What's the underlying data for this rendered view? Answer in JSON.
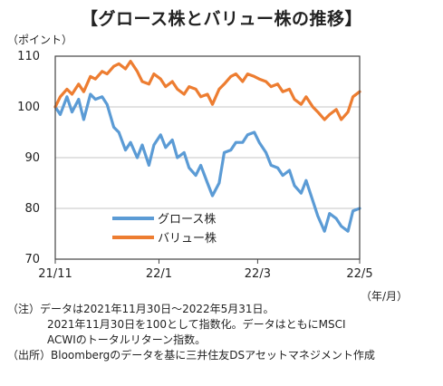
{
  "chart_data": {
    "type": "line",
    "title": "【グロース株とバリュー株の推移】",
    "ylabel": "（ポイント）",
    "xlabel": "（年/月）",
    "ylim": [
      70,
      110
    ],
    "yticks": [
      70,
      80,
      90,
      100,
      110
    ],
    "xticks": [
      "21/11",
      "22/1",
      "22/3",
      "22/5"
    ],
    "legend_position": "lower-left inside",
    "series": [
      {
        "name": "グロース株",
        "color": "#5B9BD5",
        "x": [
          "2021-11-30",
          "2021-12-03",
          "2021-12-07",
          "2021-12-10",
          "2021-12-14",
          "2021-12-17",
          "2021-12-21",
          "2021-12-24",
          "2021-12-28",
          "2021-12-31",
          "2022-01-04",
          "2022-01-07",
          "2022-01-11",
          "2022-01-14",
          "2022-01-18",
          "2022-01-21",
          "2022-01-25",
          "2022-01-28",
          "2022-02-01",
          "2022-02-04",
          "2022-02-08",
          "2022-02-11",
          "2022-02-15",
          "2022-02-18",
          "2022-02-22",
          "2022-02-25",
          "2022-03-01",
          "2022-03-04",
          "2022-03-08",
          "2022-03-11",
          "2022-03-15",
          "2022-03-18",
          "2022-03-22",
          "2022-03-25",
          "2022-03-29",
          "2022-04-01",
          "2022-04-05",
          "2022-04-08",
          "2022-04-12",
          "2022-04-15",
          "2022-04-19",
          "2022-04-22",
          "2022-04-26",
          "2022-04-29",
          "2022-05-03",
          "2022-05-06",
          "2022-05-10",
          "2022-05-13",
          "2022-05-17",
          "2022-05-20",
          "2022-05-24",
          "2022-05-27",
          "2022-05-31"
        ],
        "values": [
          100,
          98.5,
          102,
          99,
          101.5,
          97.5,
          102.5,
          101.5,
          102,
          100.5,
          96,
          95,
          91.5,
          93,
          90,
          92.5,
          88.5,
          92.5,
          94.5,
          92,
          93.5,
          90,
          91,
          88,
          86.5,
          88.5,
          85,
          82.5,
          85,
          91,
          91.5,
          93,
          93,
          94.5,
          95,
          93,
          91,
          88.5,
          88,
          86.5,
          87.5,
          84.5,
          83,
          85.5,
          81.5,
          78.5,
          75.5,
          79,
          78,
          76.5,
          75.5,
          79.5,
          80
        ]
      },
      {
        "name": "バリュー株",
        "color": "#ED7D31",
        "x": [
          "2021-11-30",
          "2021-12-03",
          "2021-12-07",
          "2021-12-10",
          "2021-12-14",
          "2021-12-17",
          "2021-12-21",
          "2021-12-24",
          "2021-12-28",
          "2021-12-31",
          "2022-01-04",
          "2022-01-07",
          "2022-01-11",
          "2022-01-14",
          "2022-01-18",
          "2022-01-21",
          "2022-01-25",
          "2022-01-28",
          "2022-02-01",
          "2022-02-04",
          "2022-02-08",
          "2022-02-11",
          "2022-02-15",
          "2022-02-18",
          "2022-02-22",
          "2022-02-25",
          "2022-03-01",
          "2022-03-04",
          "2022-03-08",
          "2022-03-11",
          "2022-03-15",
          "2022-03-18",
          "2022-03-22",
          "2022-03-25",
          "2022-03-29",
          "2022-04-01",
          "2022-04-05",
          "2022-04-08",
          "2022-04-12",
          "2022-04-15",
          "2022-04-19",
          "2022-04-22",
          "2022-04-26",
          "2022-04-29",
          "2022-05-03",
          "2022-05-06",
          "2022-05-10",
          "2022-05-13",
          "2022-05-17",
          "2022-05-20",
          "2022-05-24",
          "2022-05-27",
          "2022-05-31"
        ],
        "values": [
          100,
          102,
          103.5,
          102.5,
          104.5,
          103,
          106,
          105.5,
          107,
          106.5,
          108,
          108.5,
          107.5,
          109,
          107,
          105,
          104.5,
          106.5,
          105.5,
          104,
          105,
          103.5,
          102.5,
          104,
          103.5,
          102,
          102.5,
          100.5,
          103.5,
          104.5,
          106,
          106.5,
          105,
          106.5,
          106,
          105.5,
          105,
          104,
          104.5,
          103,
          103.5,
          101.5,
          100.5,
          102,
          100,
          99,
          97.5,
          98.5,
          99.5,
          97.5,
          99,
          102,
          103
        ]
      }
    ]
  },
  "notes": {
    "note_line1": "（注）データは2021年11月30日～2022年5月31日。",
    "note_line2": "2021年11月30日を100として指数化。データはともにMSCI",
    "note_line3": "ACWIのトータルリターン指数。",
    "source_line": "（出所）Bloombergのデータを基に三井住友DSアセットマネジメント作成"
  }
}
